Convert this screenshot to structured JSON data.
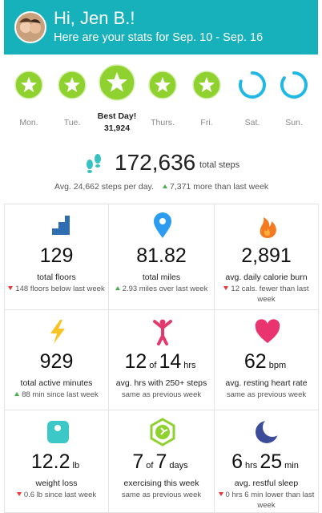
{
  "header": {
    "greeting": "Hi, Jen B.!",
    "subtitle": "Here are your stats for Sep. 10 - Sep. 16"
  },
  "days": [
    {
      "label": "Mon.",
      "status": "goal"
    },
    {
      "label": "Tue.",
      "status": "goal"
    },
    {
      "label": "Best Day!",
      "detail": "31,924",
      "status": "best"
    },
    {
      "label": "Thurs.",
      "status": "goal"
    },
    {
      "label": "Fri.",
      "status": "goal"
    },
    {
      "label": "Sat.",
      "status": "partial",
      "progress": 0.8
    },
    {
      "label": "Sun.",
      "status": "partial",
      "progress": 0.85
    }
  ],
  "total_steps": {
    "value": "172,636",
    "unit": "total steps",
    "average": "Avg. 24,662 steps per day.",
    "change": "7,371 more than last week",
    "trend": "up"
  },
  "tiles": [
    {
      "value_parts": [
        {
          "text": "129",
          "style": "number"
        }
      ],
      "label": "total floors",
      "change": "148 floors below last week",
      "trend": "down"
    },
    {
      "value_parts": [
        {
          "text": "81.82",
          "style": "number"
        }
      ],
      "label": "total miles",
      "change": "2.93 miles over last week",
      "trend": "up"
    },
    {
      "value_parts": [
        {
          "text": "2,891",
          "style": "number"
        }
      ],
      "label": "avg. daily calorie burn",
      "change": "12 cals. fewer than last week",
      "trend": "down"
    },
    {
      "value_parts": [
        {
          "text": "929",
          "style": "number"
        }
      ],
      "label": "total active minutes",
      "change": "88 min since last week",
      "trend": "up"
    },
    {
      "value_parts": [
        {
          "text": "12",
          "style": "number"
        },
        {
          "text": "of",
          "style": "unit"
        },
        {
          "text": "14",
          "style": "number"
        },
        {
          "text": "hrs",
          "style": "unit"
        }
      ],
      "label": "avg. hrs with 250+ steps",
      "change": "same as previous week",
      "trend": "same"
    },
    {
      "value_parts": [
        {
          "text": "62",
          "style": "number"
        },
        {
          "text": "bpm",
          "style": "unit"
        }
      ],
      "label": "avg. resting heart rate",
      "change": "same as previous week",
      "trend": "same"
    },
    {
      "value_parts": [
        {
          "text": "12.2",
          "style": "number"
        },
        {
          "text": "lb",
          "style": "unit"
        }
      ],
      "label": "weight loss",
      "change": "0.6 lb since last week",
      "trend": "down"
    },
    {
      "value_parts": [
        {
          "text": "7",
          "style": "number"
        },
        {
          "text": "of",
          "style": "unit"
        },
        {
          "text": "7",
          "style": "number"
        },
        {
          "text": "days",
          "style": "unit"
        }
      ],
      "label": "exercising this week",
      "change": "same as previous week",
      "trend": "same"
    },
    {
      "value_parts": [
        {
          "text": "6",
          "style": "number"
        },
        {
          "text": "hrs",
          "style": "unit"
        },
        {
          "text": "25",
          "style": "number"
        },
        {
          "text": "min",
          "style": "unit"
        }
      ],
      "label": "avg. restful sleep",
      "change": "0 hrs 6 min lower than last week",
      "trend": "down"
    }
  ]
}
